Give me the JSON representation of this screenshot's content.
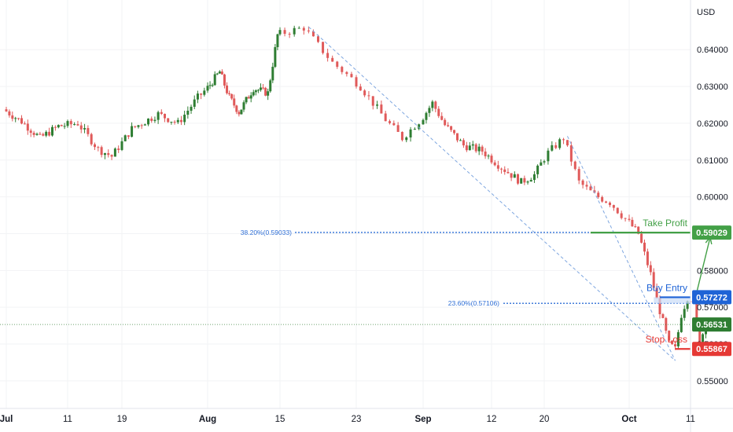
{
  "chart_data": {
    "type": "candlestick",
    "instrument_currency": "USD",
    "y_axis": {
      "unit_label": "USD",
      "ticks": [
        "0.64000",
        "0.63000",
        "0.62000",
        "0.61000",
        "0.60000",
        "0.59000",
        "0.58000",
        "0.57000",
        "0.56000",
        "0.55000"
      ],
      "range": [
        0.5425,
        0.6535
      ]
    },
    "x_axis": {
      "ticks": [
        "Jul",
        "11",
        "19",
        "Aug",
        "15",
        "23",
        "Sep",
        "12",
        "20",
        "Oct",
        "11"
      ]
    },
    "trend_points": [
      {
        "d": 0,
        "v": 0.6238
      },
      {
        "d": 3,
        "v": 0.6205
      },
      {
        "d": 6,
        "v": 0.616
      },
      {
        "d": 9,
        "v": 0.6192
      },
      {
        "d": 12,
        "v": 0.62
      },
      {
        "d": 15,
        "v": 0.613
      },
      {
        "d": 17,
        "v": 0.611
      },
      {
        "d": 20,
        "v": 0.6185
      },
      {
        "d": 24,
        "v": 0.6225
      },
      {
        "d": 27,
        "v": 0.62
      },
      {
        "d": 30,
        "v": 0.627
      },
      {
        "d": 34,
        "v": 0.634
      },
      {
        "d": 36,
        "v": 0.627
      },
      {
        "d": 38,
        "v": 0.623
      },
      {
        "d": 41,
        "v": 0.6295
      },
      {
        "d": 44,
        "v": 0.6282
      },
      {
        "d": 46,
        "v": 0.644
      },
      {
        "d": 49,
        "v": 0.646
      },
      {
        "d": 52,
        "v": 0.6365
      },
      {
        "d": 55,
        "v": 0.63
      },
      {
        "d": 58,
        "v": 0.621
      },
      {
        "d": 60,
        "v": 0.616
      },
      {
        "d": 62,
        "v": 0.6205
      },
      {
        "d": 64,
        "v": 0.6255
      },
      {
        "d": 66,
        "v": 0.6195
      },
      {
        "d": 69,
        "v": 0.614
      },
      {
        "d": 72,
        "v": 0.6125
      },
      {
        "d": 75,
        "v": 0.608
      },
      {
        "d": 78,
        "v": 0.604
      },
      {
        "d": 80,
        "v": 0.606
      },
      {
        "d": 82,
        "v": 0.612
      },
      {
        "d": 84,
        "v": 0.616
      },
      {
        "d": 86,
        "v": 0.604
      },
      {
        "d": 88,
        "v": 0.6005
      },
      {
        "d": 90,
        "v": 0.5985
      },
      {
        "d": 92,
        "v": 0.594
      },
      {
        "d": 94,
        "v": 0.59
      },
      {
        "d": 96,
        "v": 0.579
      },
      {
        "d": 97,
        "v": 0.572
      },
      {
        "d": 99,
        "v": 0.56
      },
      {
        "d": 100,
        "v": 0.5586
      },
      {
        "d": 101,
        "v": 0.568
      },
      {
        "d": 102,
        "v": 0.5727
      },
      {
        "d": 103,
        "v": 0.572
      },
      {
        "d": 104,
        "v": 0.5605
      },
      {
        "d": 105,
        "v": 0.5653
      }
    ],
    "last_day": 105,
    "fibonacci": [
      {
        "label": "38.20%(0.59033)",
        "value": 0.59033
      },
      {
        "label": "23.60%(0.57106)",
        "value": 0.57106
      }
    ],
    "trade_levels": [
      {
        "name": "Take Profit",
        "price_label": "0.59029",
        "value": 0.59029,
        "color": "#43a047"
      },
      {
        "name": "Buy Entry",
        "price_label": "0.57272",
        "value": 0.57272,
        "color": "#1e63d6"
      },
      {
        "name": "Stop Loss",
        "price_label": "0.55867",
        "value": 0.55867,
        "color": "#e53935"
      }
    ],
    "current_price": {
      "label": "0.56531",
      "value": 0.56531,
      "color": "#2e7d32"
    },
    "colors": {
      "up": "#2e7d32",
      "down": "#e05a5a",
      "grid": "#f2f3f5",
      "fib": "#2f6fd6",
      "diag": "#7fa7e0"
    }
  }
}
